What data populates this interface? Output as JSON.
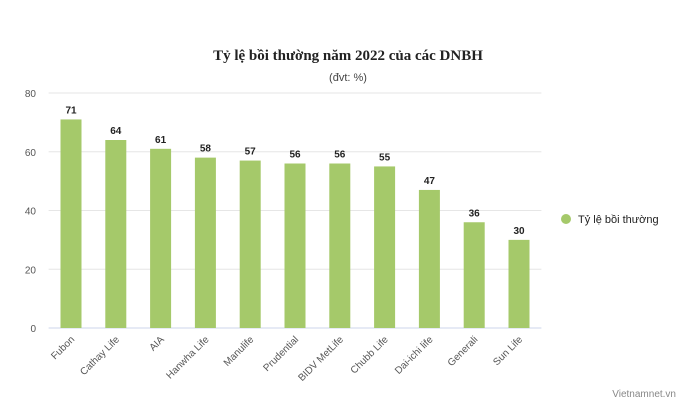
{
  "chart_data": {
    "type": "bar",
    "title": "Tỷ lệ bồi thường năm 2022 của các DNBH",
    "subtitle": "(đvt: %)",
    "categories": [
      "Fubon",
      "Cathay Life",
      "AIA",
      "Hanwha Life",
      "Manulife",
      "Prudential",
      "BIDV MetLife",
      "Chubb Life",
      "Dai-ichi life",
      "Generali",
      "Sun Life"
    ],
    "series": [
      {
        "name": "Tỷ lệ bồi thường",
        "values": [
          71,
          64,
          61,
          58,
          57,
          56,
          56,
          55,
          47,
          36,
          30
        ],
        "color": "#a5c96a"
      }
    ],
    "ylim": [
      0,
      80
    ],
    "yticks": [
      0,
      20,
      40,
      60,
      80
    ],
    "grid": true,
    "legend_position": "right",
    "xlabel": "",
    "ylabel": ""
  },
  "credit": "Vietnamnet.vn"
}
